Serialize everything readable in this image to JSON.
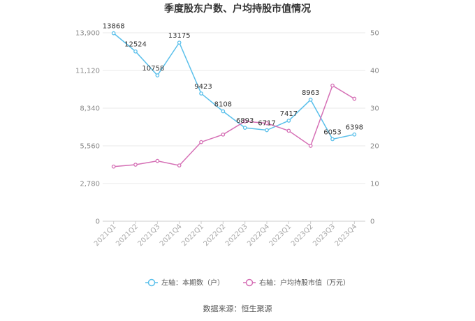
{
  "chart_data": {
    "type": "line",
    "title": "季度股东户数、户均持股市值情况",
    "categories": [
      "2021Q1",
      "2021Q2",
      "2021Q3",
      "2021Q4",
      "2022Q1",
      "2022Q2",
      "2022Q3",
      "2022Q4",
      "2023Q1",
      "2023Q2",
      "2023Q3",
      "2023Q4"
    ],
    "series": [
      {
        "name": "左轴：本期数（户）",
        "axis": "left",
        "color": "#5bc0eb",
        "values": [
          13868,
          12524,
          10758,
          13175,
          9423,
          8108,
          6893,
          6717,
          7417,
          8963,
          6053,
          6398
        ],
        "data_labels": [
          "13868",
          "12524",
          "10758",
          "13175",
          "9423",
          "8108",
          "6893",
          "6717",
          "7417",
          "8963",
          "6053",
          "6398"
        ]
      },
      {
        "name": "右轴：户均持股市值（万元）",
        "axis": "right",
        "color": "#d56fb5",
        "values": [
          14.5,
          15.0,
          16.0,
          14.8,
          21.0,
          23.0,
          26.5,
          26.0,
          24.0,
          20.0,
          36.0,
          32.5
        ]
      }
    ],
    "y_left": {
      "ticks": [
        "0",
        "2,780",
        "5,560",
        "8,340",
        "11,120",
        "13,900"
      ],
      "ylim": [
        0,
        13900
      ]
    },
    "y_right": {
      "ticks": [
        "0",
        "10",
        "20",
        "30",
        "40",
        "50"
      ],
      "ylim": [
        0,
        50
      ]
    },
    "grid": true,
    "legend_position": "bottom"
  },
  "source": "数据来源：恒生聚源"
}
